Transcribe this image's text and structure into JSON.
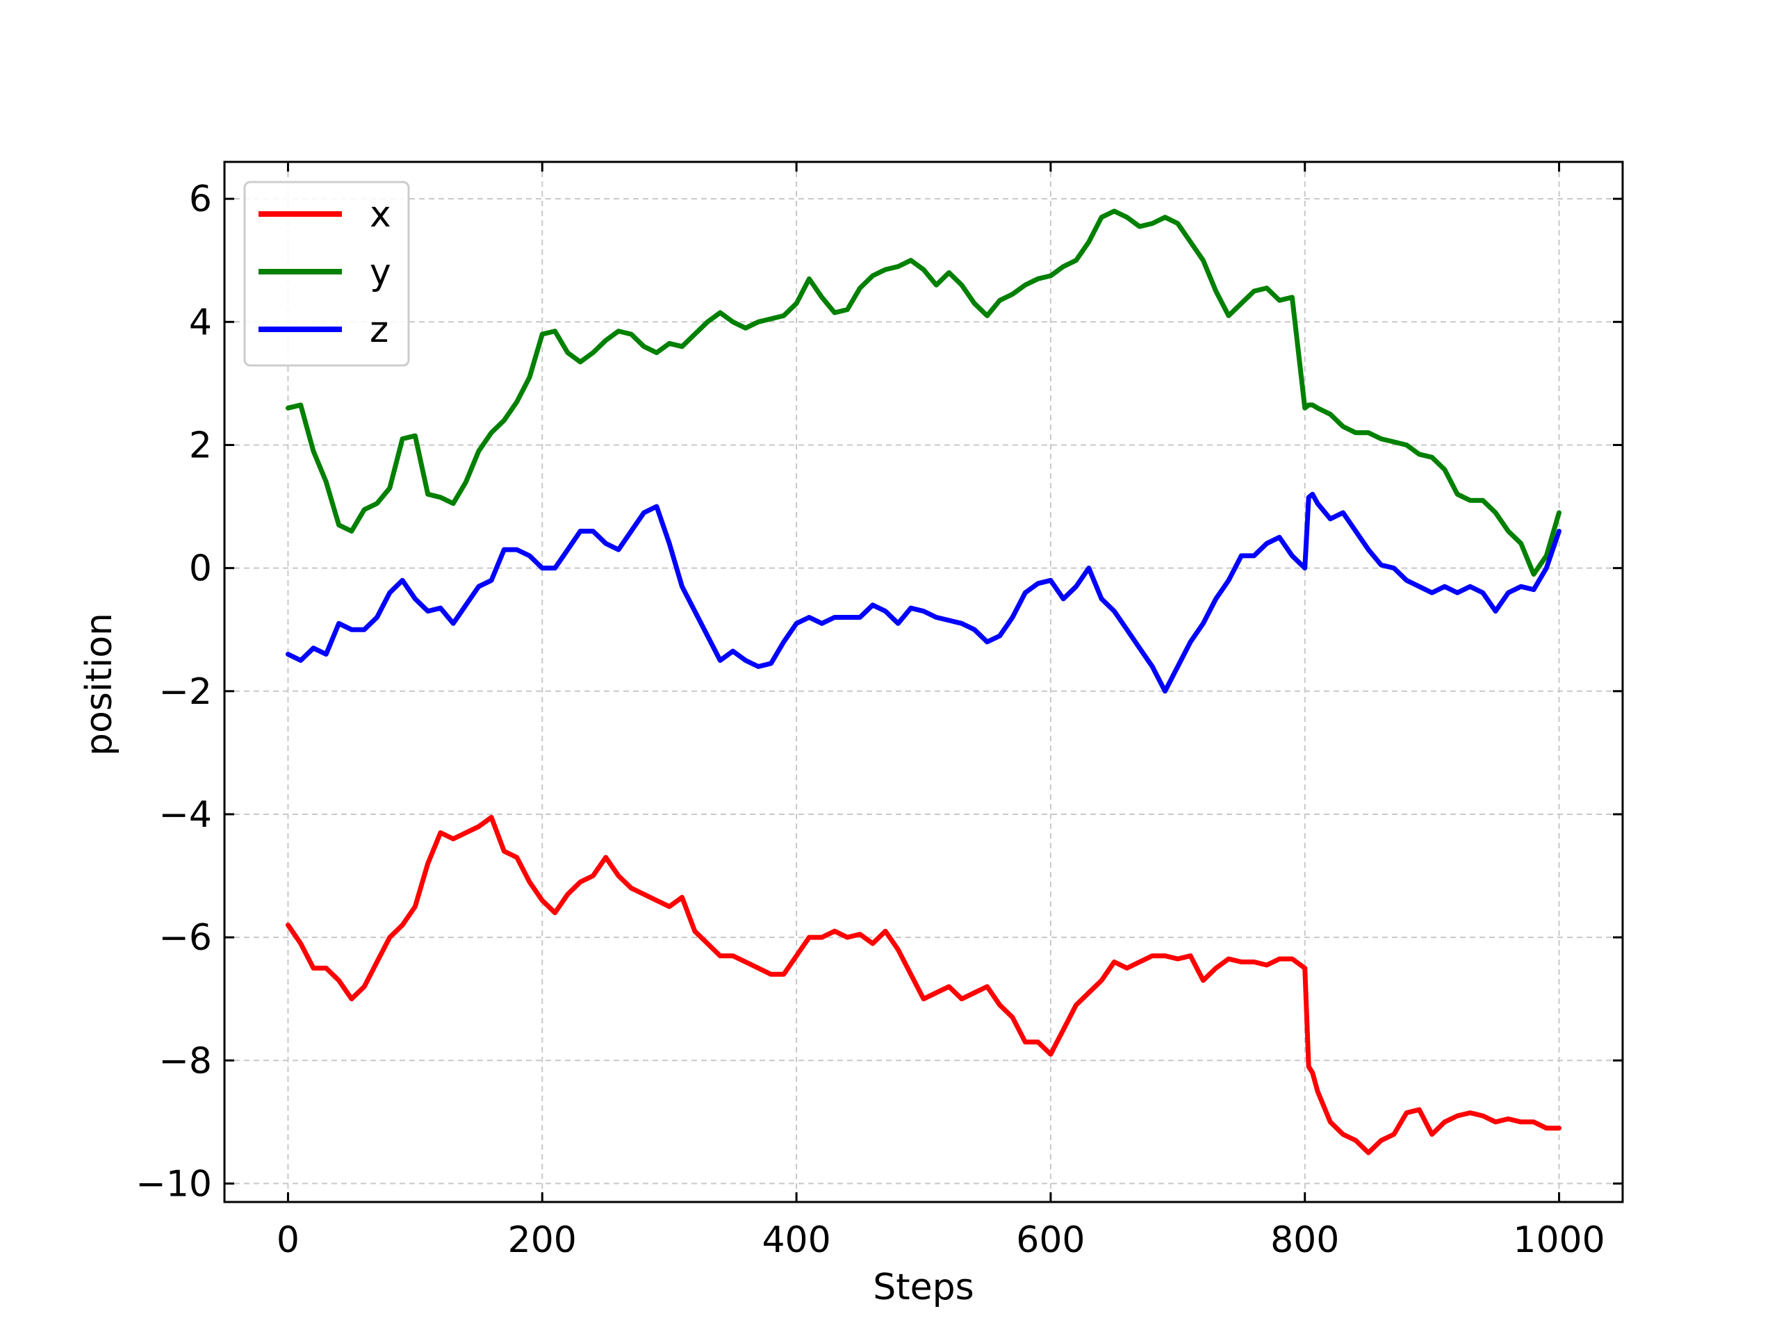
{
  "chart_data": {
    "type": "line",
    "title": "",
    "xlabel": "Steps",
    "ylabel": "position",
    "xlim": [
      -50,
      1050
    ],
    "ylim": [
      -10.3,
      6.6
    ],
    "xticks": [
      0,
      200,
      400,
      600,
      800,
      1000
    ],
    "yticks": [
      6,
      4,
      2,
      0,
      -2,
      -4,
      -6,
      -8,
      -10
    ],
    "xtick_labels": [
      "0",
      "200",
      "400",
      "600",
      "800",
      "1000"
    ],
    "ytick_labels": [
      "6",
      "4",
      "2",
      "0",
      "−2",
      "−4",
      "−6",
      "−8",
      "−10"
    ],
    "grid": true,
    "legend_position": "top-left",
    "series": [
      {
        "name": "x",
        "color": "#ff0000",
        "x": [
          0,
          10,
          20,
          30,
          40,
          50,
          60,
          70,
          80,
          90,
          100,
          110,
          120,
          130,
          140,
          150,
          160,
          170,
          180,
          190,
          200,
          210,
          220,
          230,
          240,
          250,
          260,
          270,
          280,
          290,
          300,
          310,
          320,
          330,
          340,
          350,
          360,
          370,
          380,
          390,
          400,
          410,
          420,
          430,
          440,
          450,
          460,
          470,
          480,
          490,
          500,
          510,
          520,
          530,
          540,
          550,
          560,
          570,
          580,
          590,
          600,
          610,
          620,
          630,
          640,
          650,
          660,
          670,
          680,
          690,
          700,
          710,
          720,
          730,
          740,
          750,
          760,
          770,
          780,
          790,
          800,
          803,
          806,
          810,
          820,
          830,
          840,
          850,
          860,
          870,
          880,
          890,
          900,
          910,
          920,
          930,
          940,
          950,
          960,
          970,
          980,
          990,
          1000
        ],
        "values": [
          -5.8,
          -6.1,
          -6.5,
          -6.5,
          -6.7,
          -7.0,
          -6.8,
          -6.4,
          -6.0,
          -5.8,
          -5.5,
          -4.8,
          -4.3,
          -4.4,
          -4.3,
          -4.2,
          -4.05,
          -4.6,
          -4.7,
          -5.1,
          -5.4,
          -5.6,
          -5.3,
          -5.1,
          -5.0,
          -4.7,
          -5.0,
          -5.2,
          -5.3,
          -5.4,
          -5.5,
          -5.35,
          -5.9,
          -6.1,
          -6.3,
          -6.3,
          -6.4,
          -6.5,
          -6.6,
          -6.6,
          -6.3,
          -6.0,
          -6.0,
          -5.9,
          -6.0,
          -5.95,
          -6.1,
          -5.9,
          -6.2,
          -6.6,
          -7.0,
          -6.9,
          -6.8,
          -7.0,
          -6.9,
          -6.8,
          -7.1,
          -7.3,
          -7.7,
          -7.7,
          -7.9,
          -7.5,
          -7.1,
          -6.9,
          -6.7,
          -6.4,
          -6.5,
          -6.4,
          -6.3,
          -6.3,
          -6.35,
          -6.3,
          -6.7,
          -6.5,
          -6.35,
          -6.4,
          -6.4,
          -6.45,
          -6.35,
          -6.35,
          -6.5,
          -8.1,
          -8.2,
          -8.5,
          -9.0,
          -9.2,
          -9.3,
          -9.5,
          -9.3,
          -9.2,
          -8.85,
          -8.8,
          -9.2,
          -9.0,
          -8.9,
          -8.85,
          -8.9,
          -9.0,
          -8.95,
          -9.0,
          -9.0,
          -9.1,
          -9.1
        ]
      },
      {
        "name": "y",
        "color": "#008000",
        "x": [
          0,
          10,
          20,
          30,
          40,
          50,
          60,
          70,
          80,
          90,
          100,
          110,
          120,
          130,
          140,
          150,
          160,
          170,
          180,
          190,
          200,
          210,
          220,
          230,
          240,
          250,
          260,
          270,
          280,
          290,
          300,
          310,
          320,
          330,
          340,
          350,
          360,
          370,
          380,
          390,
          400,
          410,
          420,
          430,
          440,
          450,
          460,
          470,
          480,
          490,
          500,
          510,
          520,
          530,
          540,
          550,
          560,
          570,
          580,
          590,
          600,
          610,
          620,
          630,
          640,
          650,
          660,
          670,
          680,
          690,
          700,
          710,
          720,
          730,
          740,
          750,
          760,
          770,
          780,
          790,
          800,
          803,
          806,
          810,
          820,
          830,
          840,
          850,
          860,
          870,
          880,
          890,
          900,
          910,
          920,
          930,
          940,
          950,
          960,
          970,
          980,
          990,
          1000
        ],
        "values": [
          2.6,
          2.65,
          1.9,
          1.4,
          0.7,
          0.6,
          0.95,
          1.05,
          1.3,
          2.1,
          2.15,
          1.2,
          1.15,
          1.05,
          1.4,
          1.9,
          2.2,
          2.4,
          2.7,
          3.1,
          3.8,
          3.85,
          3.5,
          3.35,
          3.5,
          3.7,
          3.85,
          3.8,
          3.6,
          3.5,
          3.65,
          3.6,
          3.8,
          4.0,
          4.15,
          4.0,
          3.9,
          4.0,
          4.05,
          4.1,
          4.3,
          4.7,
          4.4,
          4.15,
          4.2,
          4.55,
          4.75,
          4.85,
          4.9,
          5.0,
          4.85,
          4.6,
          4.8,
          4.6,
          4.3,
          4.1,
          4.35,
          4.45,
          4.6,
          4.7,
          4.75,
          4.9,
          5.0,
          5.3,
          5.7,
          5.8,
          5.7,
          5.55,
          5.6,
          5.7,
          5.6,
          5.3,
          5.0,
          4.5,
          4.1,
          4.3,
          4.5,
          4.55,
          4.35,
          4.4,
          2.6,
          2.65,
          2.65,
          2.6,
          2.5,
          2.3,
          2.2,
          2.2,
          2.1,
          2.05,
          2.0,
          1.85,
          1.8,
          1.6,
          1.2,
          1.1,
          1.1,
          0.9,
          0.6,
          0.4,
          -0.1,
          0.2,
          0.9
        ]
      },
      {
        "name": "z",
        "color": "#0000ff",
        "x": [
          0,
          10,
          20,
          30,
          40,
          50,
          60,
          70,
          80,
          90,
          100,
          110,
          120,
          130,
          140,
          150,
          160,
          170,
          180,
          190,
          200,
          210,
          220,
          230,
          240,
          250,
          260,
          270,
          280,
          290,
          300,
          310,
          320,
          330,
          340,
          350,
          360,
          370,
          380,
          390,
          400,
          410,
          420,
          430,
          440,
          450,
          460,
          470,
          480,
          490,
          500,
          510,
          520,
          530,
          540,
          550,
          560,
          570,
          580,
          590,
          600,
          610,
          620,
          630,
          640,
          650,
          660,
          670,
          680,
          690,
          700,
          710,
          720,
          730,
          740,
          750,
          760,
          770,
          780,
          790,
          800,
          803,
          806,
          810,
          820,
          830,
          840,
          850,
          860,
          870,
          880,
          890,
          900,
          910,
          920,
          930,
          940,
          950,
          960,
          970,
          980,
          990,
          1000
        ],
        "values": [
          -1.4,
          -1.5,
          -1.3,
          -1.4,
          -0.9,
          -1.0,
          -1.0,
          -0.8,
          -0.4,
          -0.2,
          -0.5,
          -0.7,
          -0.65,
          -0.9,
          -0.6,
          -0.3,
          -0.2,
          0.3,
          0.3,
          0.2,
          0.0,
          0.0,
          0.3,
          0.6,
          0.6,
          0.4,
          0.3,
          0.6,
          0.9,
          1.0,
          0.4,
          -0.3,
          -0.7,
          -1.1,
          -1.5,
          -1.35,
          -1.5,
          -1.6,
          -1.55,
          -1.2,
          -0.9,
          -0.8,
          -0.9,
          -0.8,
          -0.8,
          -0.8,
          -0.6,
          -0.7,
          -0.9,
          -0.65,
          -0.7,
          -0.8,
          -0.85,
          -0.9,
          -1.0,
          -1.2,
          -1.1,
          -0.8,
          -0.4,
          -0.25,
          -0.2,
          -0.5,
          -0.3,
          0.0,
          -0.5,
          -0.7,
          -1.0,
          -1.3,
          -1.6,
          -2.0,
          -1.6,
          -1.2,
          -0.9,
          -0.5,
          -0.2,
          0.2,
          0.2,
          0.4,
          0.5,
          0.2,
          0.0,
          1.15,
          1.2,
          1.05,
          0.8,
          0.9,
          0.6,
          0.3,
          0.05,
          0.0,
          -0.2,
          -0.3,
          -0.4,
          -0.3,
          -0.4,
          -0.3,
          -0.4,
          -0.7,
          -0.4,
          -0.3,
          -0.35,
          0.0,
          0.6
        ]
      }
    ]
  }
}
